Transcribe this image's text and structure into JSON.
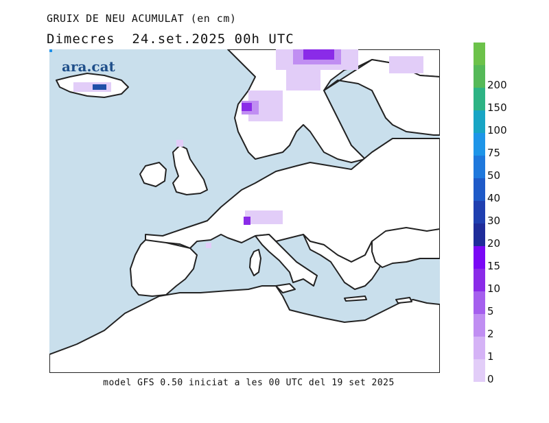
{
  "title": "GRUIX DE NEU ACUMULAT (en cm)",
  "subtitle": "Dimecres  24.set.2025 00h UTC",
  "footer": "model GFS 0.50 iniciat a les 00 UTC del 19 set 2025",
  "logo": "ara.cat",
  "colors": {
    "sea": "#c9dfec",
    "land": "#ffffff",
    "coast": "#222222"
  },
  "legend": [
    {
      "label": "0",
      "color": "#e2cdf8"
    },
    {
      "label": "1",
      "color": "#d5b3f6"
    },
    {
      "label": "2",
      "color": "#c08ef2"
    },
    {
      "label": "5",
      "color": "#a55fee"
    },
    {
      "label": "10",
      "color": "#8a2be8"
    },
    {
      "label": "15",
      "color": "#7a08f5"
    },
    {
      "label": "20",
      "color": "#1f2c9a"
    },
    {
      "label": "30",
      "color": "#1f3fb0"
    },
    {
      "label": "40",
      "color": "#1e5ac8"
    },
    {
      "label": "50",
      "color": "#1f78dc"
    },
    {
      "label": "75",
      "color": "#1e95e8"
    },
    {
      "label": "100",
      "color": "#18a5c4"
    },
    {
      "label": "150",
      "color": "#2db384"
    },
    {
      "label": "200",
      "color": "#55b958"
    },
    {
      "label": "",
      "color": "#6cc24a"
    }
  ]
}
